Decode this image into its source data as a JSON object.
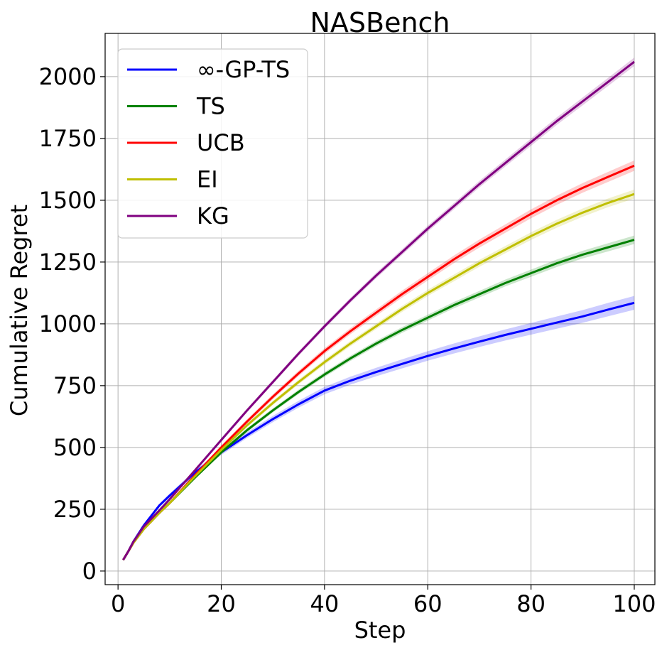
{
  "chart_data": {
    "type": "line",
    "title": "NASBench",
    "xlabel": "Step",
    "ylabel": "Cumulative Regret",
    "xlim": [
      -2.5,
      104
    ],
    "ylim": [
      -55,
      2175
    ],
    "xticks": [
      0,
      20,
      40,
      60,
      80,
      100
    ],
    "yticks": [
      0,
      250,
      500,
      750,
      1000,
      1250,
      1500,
      1750,
      2000
    ],
    "grid": true,
    "legend_position": "top-left",
    "x": [
      1,
      2,
      3,
      5,
      8,
      10,
      15,
      20,
      25,
      30,
      35,
      40,
      45,
      50,
      55,
      60,
      65,
      70,
      75,
      80,
      85,
      90,
      95,
      100
    ],
    "series": [
      {
        "name": "∞-GP-TS",
        "color": "#0000ff",
        "band": 25,
        "values": [
          45,
          80,
          120,
          185,
          265,
          305,
          400,
          480,
          550,
          615,
          675,
          730,
          770,
          805,
          838,
          870,
          900,
          928,
          955,
          980,
          1005,
          1030,
          1058,
          1085
        ]
      },
      {
        "name": "TS",
        "color": "#008000",
        "band": 14,
        "values": [
          45,
          80,
          115,
          170,
          235,
          275,
          380,
          480,
          570,
          650,
          725,
          795,
          860,
          920,
          975,
          1025,
          1075,
          1120,
          1165,
          1205,
          1245,
          1280,
          1310,
          1340
        ]
      },
      {
        "name": "UCB",
        "color": "#ff0000",
        "band": 18,
        "values": [
          45,
          80,
          115,
          170,
          235,
          275,
          390,
          500,
          605,
          705,
          800,
          890,
          970,
          1045,
          1120,
          1190,
          1260,
          1325,
          1385,
          1445,
          1500,
          1550,
          1595,
          1640
        ]
      },
      {
        "name": "EI",
        "color": "#bfbf00",
        "band": 15,
        "values": [
          45,
          80,
          115,
          170,
          235,
          275,
          385,
          490,
          590,
          680,
          765,
          845,
          920,
          990,
          1060,
          1125,
          1185,
          1245,
          1300,
          1355,
          1405,
          1450,
          1490,
          1525
        ]
      },
      {
        "name": "KG",
        "color": "#800080",
        "band": 14,
        "values": [
          45,
          80,
          120,
          180,
          245,
          290,
          410,
          530,
          650,
          765,
          880,
          990,
          1095,
          1195,
          1290,
          1385,
          1475,
          1565,
          1650,
          1735,
          1820,
          1900,
          1980,
          2060
        ]
      }
    ]
  }
}
